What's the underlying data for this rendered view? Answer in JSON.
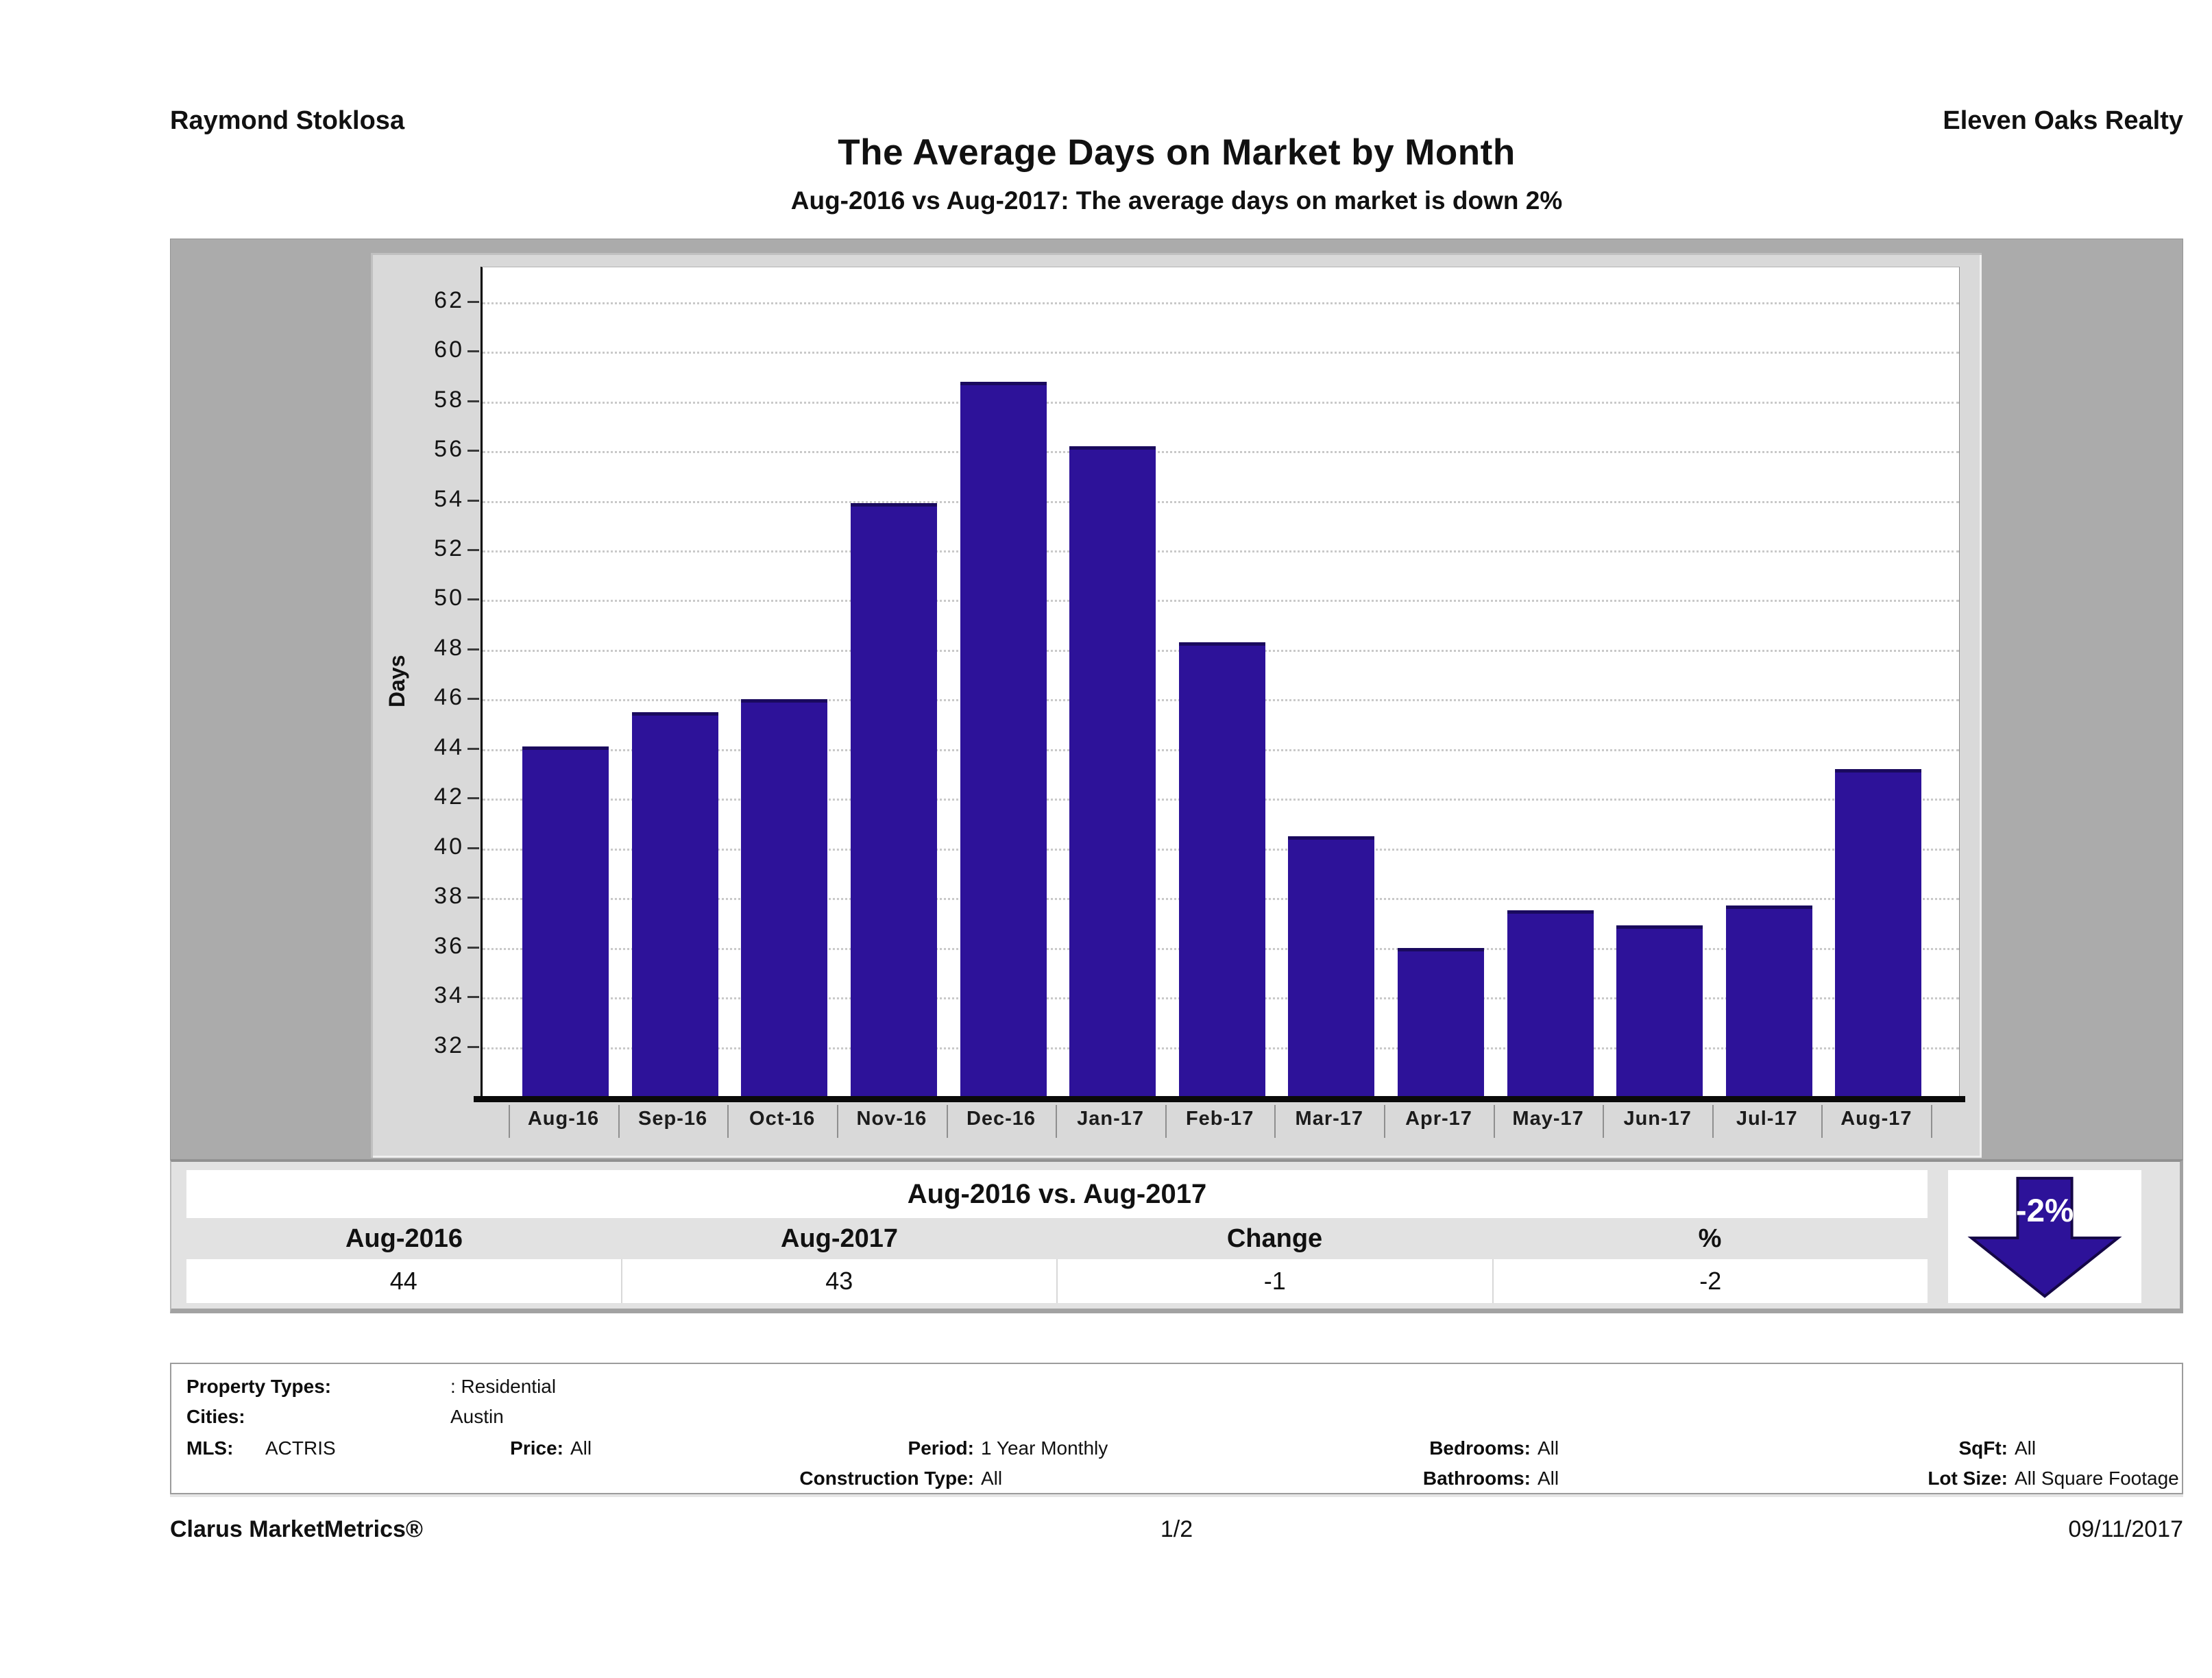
{
  "header": {
    "agent": "Raymond Stoklosa",
    "company": "Eleven Oaks Realty",
    "title": "The Average Days on Market by Month",
    "subtitle": "Aug-2016 vs Aug-2017: The average days on market is down 2%"
  },
  "chart_data": {
    "type": "bar",
    "title": "The Average Days on Market by Month",
    "categories": [
      "Aug-16",
      "Sep-16",
      "Oct-16",
      "Nov-16",
      "Dec-16",
      "Jan-17",
      "Feb-17",
      "Mar-17",
      "Apr-17",
      "May-17",
      "Jun-17",
      "Jul-17",
      "Aug-17"
    ],
    "values": [
      44.1,
      45.5,
      46.0,
      53.9,
      58.8,
      56.2,
      48.3,
      40.5,
      36.0,
      37.5,
      36.9,
      37.7,
      43.2
    ],
    "xlabel": "",
    "ylabel": "Days",
    "ylim": [
      30,
      63.4
    ],
    "yticks": {
      "min": 32,
      "max": 62,
      "step": 2
    },
    "grid": "horizontal-dashed",
    "legend": "none",
    "bar_color": "#2d1299",
    "bar_cap_color": "#1a0a5e"
  },
  "summary": {
    "title": "Aug-2016 vs. Aug-2017",
    "columns": [
      "Aug-2016",
      "Aug-2017",
      "Change",
      "%"
    ],
    "values": [
      "44",
      "43",
      "-1",
      "-2"
    ],
    "badge_label": "-2%",
    "badge_color": "#2d1299"
  },
  "filters": {
    "property_types": {
      "label": "Property Types:",
      "value": ": Residential"
    },
    "cities": {
      "label": "Cities:",
      "value": "Austin"
    },
    "mls": {
      "label": "MLS:",
      "value": "ACTRIS"
    },
    "price": {
      "label": "Price:",
      "value": "All"
    },
    "period": {
      "label": "Period:",
      "value": "1 Year Monthly"
    },
    "bedrooms": {
      "label": "Bedrooms:",
      "value": "All"
    },
    "sqft": {
      "label": "SqFt:",
      "value": "All"
    },
    "construction_type": {
      "label": "Construction Type:",
      "value": "All"
    },
    "bathrooms": {
      "label": "Bathrooms:",
      "value": "All"
    },
    "lot_size": {
      "label": "Lot Size:",
      "value": "All Square Footage"
    }
  },
  "footer": {
    "brand": "Clarus MarketMetrics®",
    "page": "1/2",
    "date": "09/11/2017"
  }
}
